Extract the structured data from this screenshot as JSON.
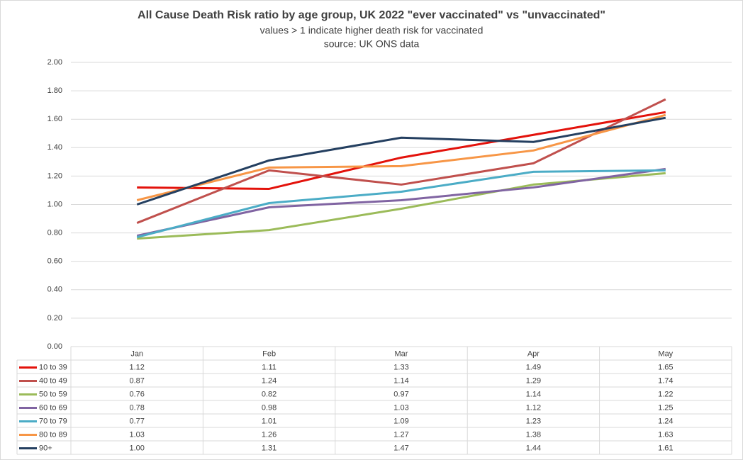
{
  "chart_data": {
    "type": "line",
    "title": "All Cause Death Risk ratio by age group, UK 2022 \"ever vaccinated\" vs \"unvaccinated\"",
    "subtitle": "values > 1 indicate higher death risk for vaccinated",
    "source": "source:  UK ONS data",
    "categories": [
      "Jan",
      "Feb",
      "Mar",
      "Apr",
      "May"
    ],
    "series": [
      {
        "name": "10 to 39",
        "color": "#e3120b",
        "values": [
          1.12,
          1.11,
          1.33,
          1.49,
          1.65
        ],
        "value_labels": [
          "1.12",
          "1.11",
          "1.33",
          "1.49",
          "1.65"
        ]
      },
      {
        "name": "40 to 49",
        "color": "#c0504d",
        "values": [
          0.87,
          1.24,
          1.14,
          1.29,
          1.74
        ],
        "value_labels": [
          "0.87",
          "1.24",
          "1.14",
          "1.29",
          "1.74"
        ]
      },
      {
        "name": "50 to 59",
        "color": "#9bbb59",
        "values": [
          0.76,
          0.82,
          0.97,
          1.14,
          1.22
        ],
        "value_labels": [
          "0.76",
          "0.82",
          "0.97",
          "1.14",
          "1.22"
        ]
      },
      {
        "name": "60 to 69",
        "color": "#8064a2",
        "values": [
          0.78,
          0.98,
          1.03,
          1.12,
          1.25
        ],
        "value_labels": [
          "0.78",
          "0.98",
          "1.03",
          "1.12",
          "1.25"
        ]
      },
      {
        "name": "70 to 79",
        "color": "#4bacc6",
        "values": [
          0.77,
          1.01,
          1.09,
          1.23,
          1.24
        ],
        "value_labels": [
          "0.77",
          "1.01",
          "1.09",
          "1.23",
          "1.24"
        ]
      },
      {
        "name": "80 to 89",
        "color": "#f79646",
        "values": [
          1.03,
          1.26,
          1.27,
          1.38,
          1.63
        ],
        "value_labels": [
          "1.03",
          "1.26",
          "1.27",
          "1.38",
          "1.63"
        ]
      },
      {
        "name": "90+",
        "color": "#243f60",
        "values": [
          1.0,
          1.31,
          1.47,
          1.44,
          1.61
        ],
        "value_labels": [
          "1.00",
          "1.31",
          "1.47",
          "1.44",
          "1.61"
        ]
      }
    ],
    "ylim": [
      0,
      2
    ],
    "yticks": [
      {
        "value": 0,
        "label": "0.00"
      },
      {
        "value": 0.2,
        "label": "0.20"
      },
      {
        "value": 0.4,
        "label": "0.40"
      },
      {
        "value": 0.6,
        "label": "0.60"
      },
      {
        "value": 0.8,
        "label": "0.80"
      },
      {
        "value": 1,
        "label": "1.00"
      },
      {
        "value": 1.2,
        "label": "1.20"
      },
      {
        "value": 1.4,
        "label": "1.40"
      },
      {
        "value": 1.6,
        "label": "1.60"
      },
      {
        "value": 1.8,
        "label": "1.80"
      },
      {
        "value": 2,
        "label": "2.00"
      }
    ],
    "grid": true
  }
}
